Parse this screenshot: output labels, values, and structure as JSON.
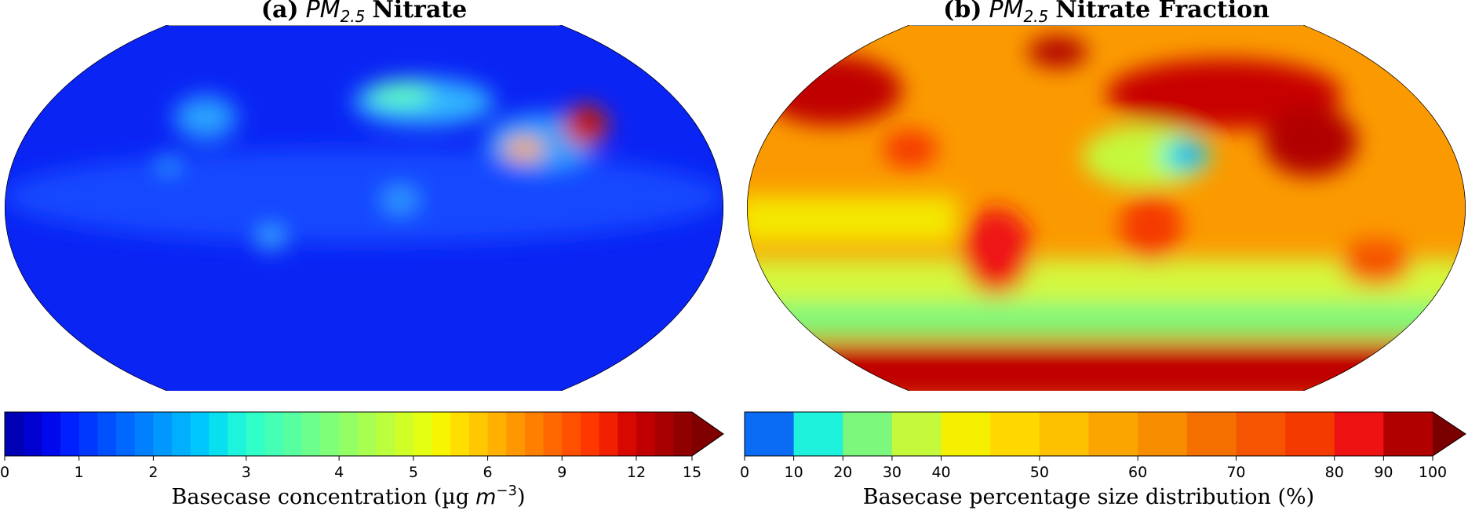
{
  "panels": [
    {
      "title": {
        "label": "(a)",
        "species": "PM",
        "subscript": "2.5",
        "name": "Nitrate"
      },
      "colorbar": {
        "boundaries": [
          0,
          0.25,
          0.5,
          0.75,
          1,
          1.25,
          1.5,
          1.75,
          2,
          2.2,
          2.4,
          2.6,
          2.8,
          3,
          3.2,
          3.4,
          3.6,
          3.8,
          4,
          4.25,
          4.5,
          4.75,
          5,
          5.25,
          5.5,
          5.75,
          6,
          6.75,
          7.5,
          8.25,
          9,
          9.75,
          10.5,
          11.25,
          12,
          13,
          14,
          15
        ],
        "colors": [
          "#0000b4",
          "#0000d0",
          "#0008ec",
          "#0020ff",
          "#0038ff",
          "#0050ff",
          "#0068ff",
          "#0080ff",
          "#0098ff",
          "#00b0ff",
          "#00c8ff",
          "#08e0f0",
          "#1cf4dc",
          "#30ffc8",
          "#44ffb4",
          "#58ffa0",
          "#6cff8c",
          "#80ff78",
          "#94ff64",
          "#a8ff50",
          "#bcff3c",
          "#d0ff28",
          "#e4ff14",
          "#f8f500",
          "#ffde00",
          "#ffc800",
          "#ffb000",
          "#ff9800",
          "#ff8000",
          "#ff6800",
          "#ff5000",
          "#ff3800",
          "#f02000",
          "#d80800",
          "#c00000",
          "#a80000",
          "#900000"
        ],
        "extend_color": "#800000",
        "ticks": [
          0,
          1,
          2,
          3,
          4,
          5,
          6,
          9,
          12,
          15
        ],
        "label": {
          "text": "Basecase concentration (µg",
          "unit": "m",
          "exponent": "−3",
          "close": ")"
        }
      }
    },
    {
      "title": {
        "label": "(b)",
        "species": "PM",
        "subscript": "2.5",
        "name": "Nitrate Fraction"
      },
      "colorbar": {
        "boundaries": [
          0,
          10,
          20,
          30,
          40,
          45,
          50,
          55,
          60,
          65,
          70,
          75,
          80,
          90,
          100
        ],
        "colors": [
          "#0a6cf4",
          "#1ef2dc",
          "#7cf87c",
          "#c4f93c",
          "#f4f000",
          "#ffd800",
          "#fdc100",
          "#fba600",
          "#f98d00",
          "#f67000",
          "#f55400",
          "#f53a00",
          "#ee1212",
          "#b00000"
        ],
        "extend_color": "#7a0000",
        "ticks": [
          0,
          10,
          20,
          30,
          40,
          50,
          60,
          70,
          80,
          90,
          100
        ],
        "label": {
          "text": "Basecase percentage size distribution (%)"
        }
      }
    }
  ]
}
